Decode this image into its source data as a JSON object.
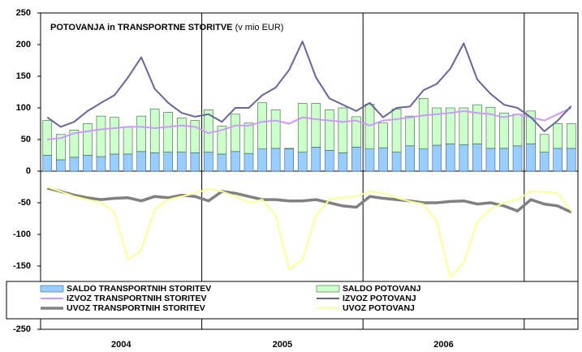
{
  "chart_data": {
    "type": "combo",
    "title": "POTOVANJA in TRANSPORTNE STORITVE",
    "subtitle": "(v mio EUR)",
    "years": [
      "2004",
      "2005",
      "2006"
    ],
    "ylim": [
      -250,
      250
    ],
    "yticks": [
      250,
      200,
      150,
      100,
      50,
      0,
      -50,
      -100,
      -150,
      -250
    ],
    "series": [
      {
        "name": "SALDO TRANSPORTNIH STORITEV",
        "kind": "bar",
        "color": "#99ccff",
        "stroke": "#336699",
        "values": [
          25,
          18,
          22,
          25,
          23,
          27,
          27,
          31,
          29,
          30,
          30,
          29,
          30,
          27,
          31,
          28,
          35,
          36,
          35,
          30,
          38,
          33,
          29,
          38,
          35,
          37,
          30,
          40,
          35,
          41,
          43,
          42,
          43,
          36,
          36,
          40,
          43,
          30,
          36,
          36
        ]
      },
      {
        "name": "SALDO POTOVANJ",
        "kind": "bar",
        "color": "#ccffcc",
        "stroke": "#336633",
        "values": [
          55,
          40,
          43,
          50,
          64,
          58,
          43,
          56,
          69,
          63,
          54,
          51,
          67,
          44,
          59,
          48,
          73,
          61,
          1,
          77,
          69,
          64,
          71,
          48,
          71,
          39,
          68,
          47,
          80,
          59,
          57,
          58,
          62,
          65,
          56,
          50,
          52,
          28,
          39,
          39
        ]
      },
      {
        "name": "IZVOZ TRANSPORTNIH STORITEV",
        "kind": "line",
        "color": "#cc99ff",
        "width": 2,
        "values": [
          50,
          52,
          60,
          63,
          66,
          68,
          70,
          70,
          68,
          70,
          72,
          70,
          60,
          65,
          72,
          72,
          78,
          80,
          75,
          85,
          82,
          80,
          78,
          80,
          72,
          80,
          82,
          85,
          88,
          90,
          92,
          95,
          92,
          90,
          85,
          90,
          85,
          80,
          90,
          100
        ]
      },
      {
        "name": "IZVOZ POTOVANJ",
        "kind": "line",
        "color": "#666699",
        "width": 2,
        "values": [
          85,
          70,
          78,
          95,
          108,
          120,
          148,
          180,
          130,
          108,
          92,
          86,
          90,
          78,
          100,
          100,
          120,
          132,
          160,
          205,
          148,
          115,
          105,
          95,
          108,
          85,
          100,
          102,
          128,
          138,
          162,
          202,
          145,
          122,
          105,
          100,
          85,
          63,
          80,
          103
        ]
      },
      {
        "name": "UVOZ TRANSPORTNIH STORITEV",
        "kind": "line",
        "color": "#808080",
        "width": 3.5,
        "values": [
          -27,
          -32,
          -38,
          -42,
          -45,
          -43,
          -42,
          -47,
          -40,
          -42,
          -38,
          -40,
          -47,
          -32,
          -35,
          -40,
          -45,
          -45,
          -47,
          -47,
          -45,
          -50,
          -55,
          -57,
          -40,
          -43,
          -45,
          -47,
          -50,
          -50,
          -48,
          -47,
          -52,
          -50,
          -55,
          -63,
          -45,
          -52,
          -55,
          -65
        ]
      },
      {
        "name": "UVOZ POTOVANJ",
        "kind": "line",
        "color": "#ffff99",
        "width": 2,
        "values": [
          -25,
          -32,
          -40,
          -45,
          -50,
          -65,
          -140,
          -125,
          -60,
          -45,
          -40,
          -35,
          -28,
          -32,
          -40,
          -50,
          -45,
          -70,
          -155,
          -140,
          -70,
          -45,
          -42,
          -40,
          -32,
          -35,
          -42,
          -48,
          -52,
          -80,
          -168,
          -145,
          -80,
          -60,
          -50,
          -45,
          -32,
          -33,
          -35,
          -63
        ]
      }
    ]
  }
}
